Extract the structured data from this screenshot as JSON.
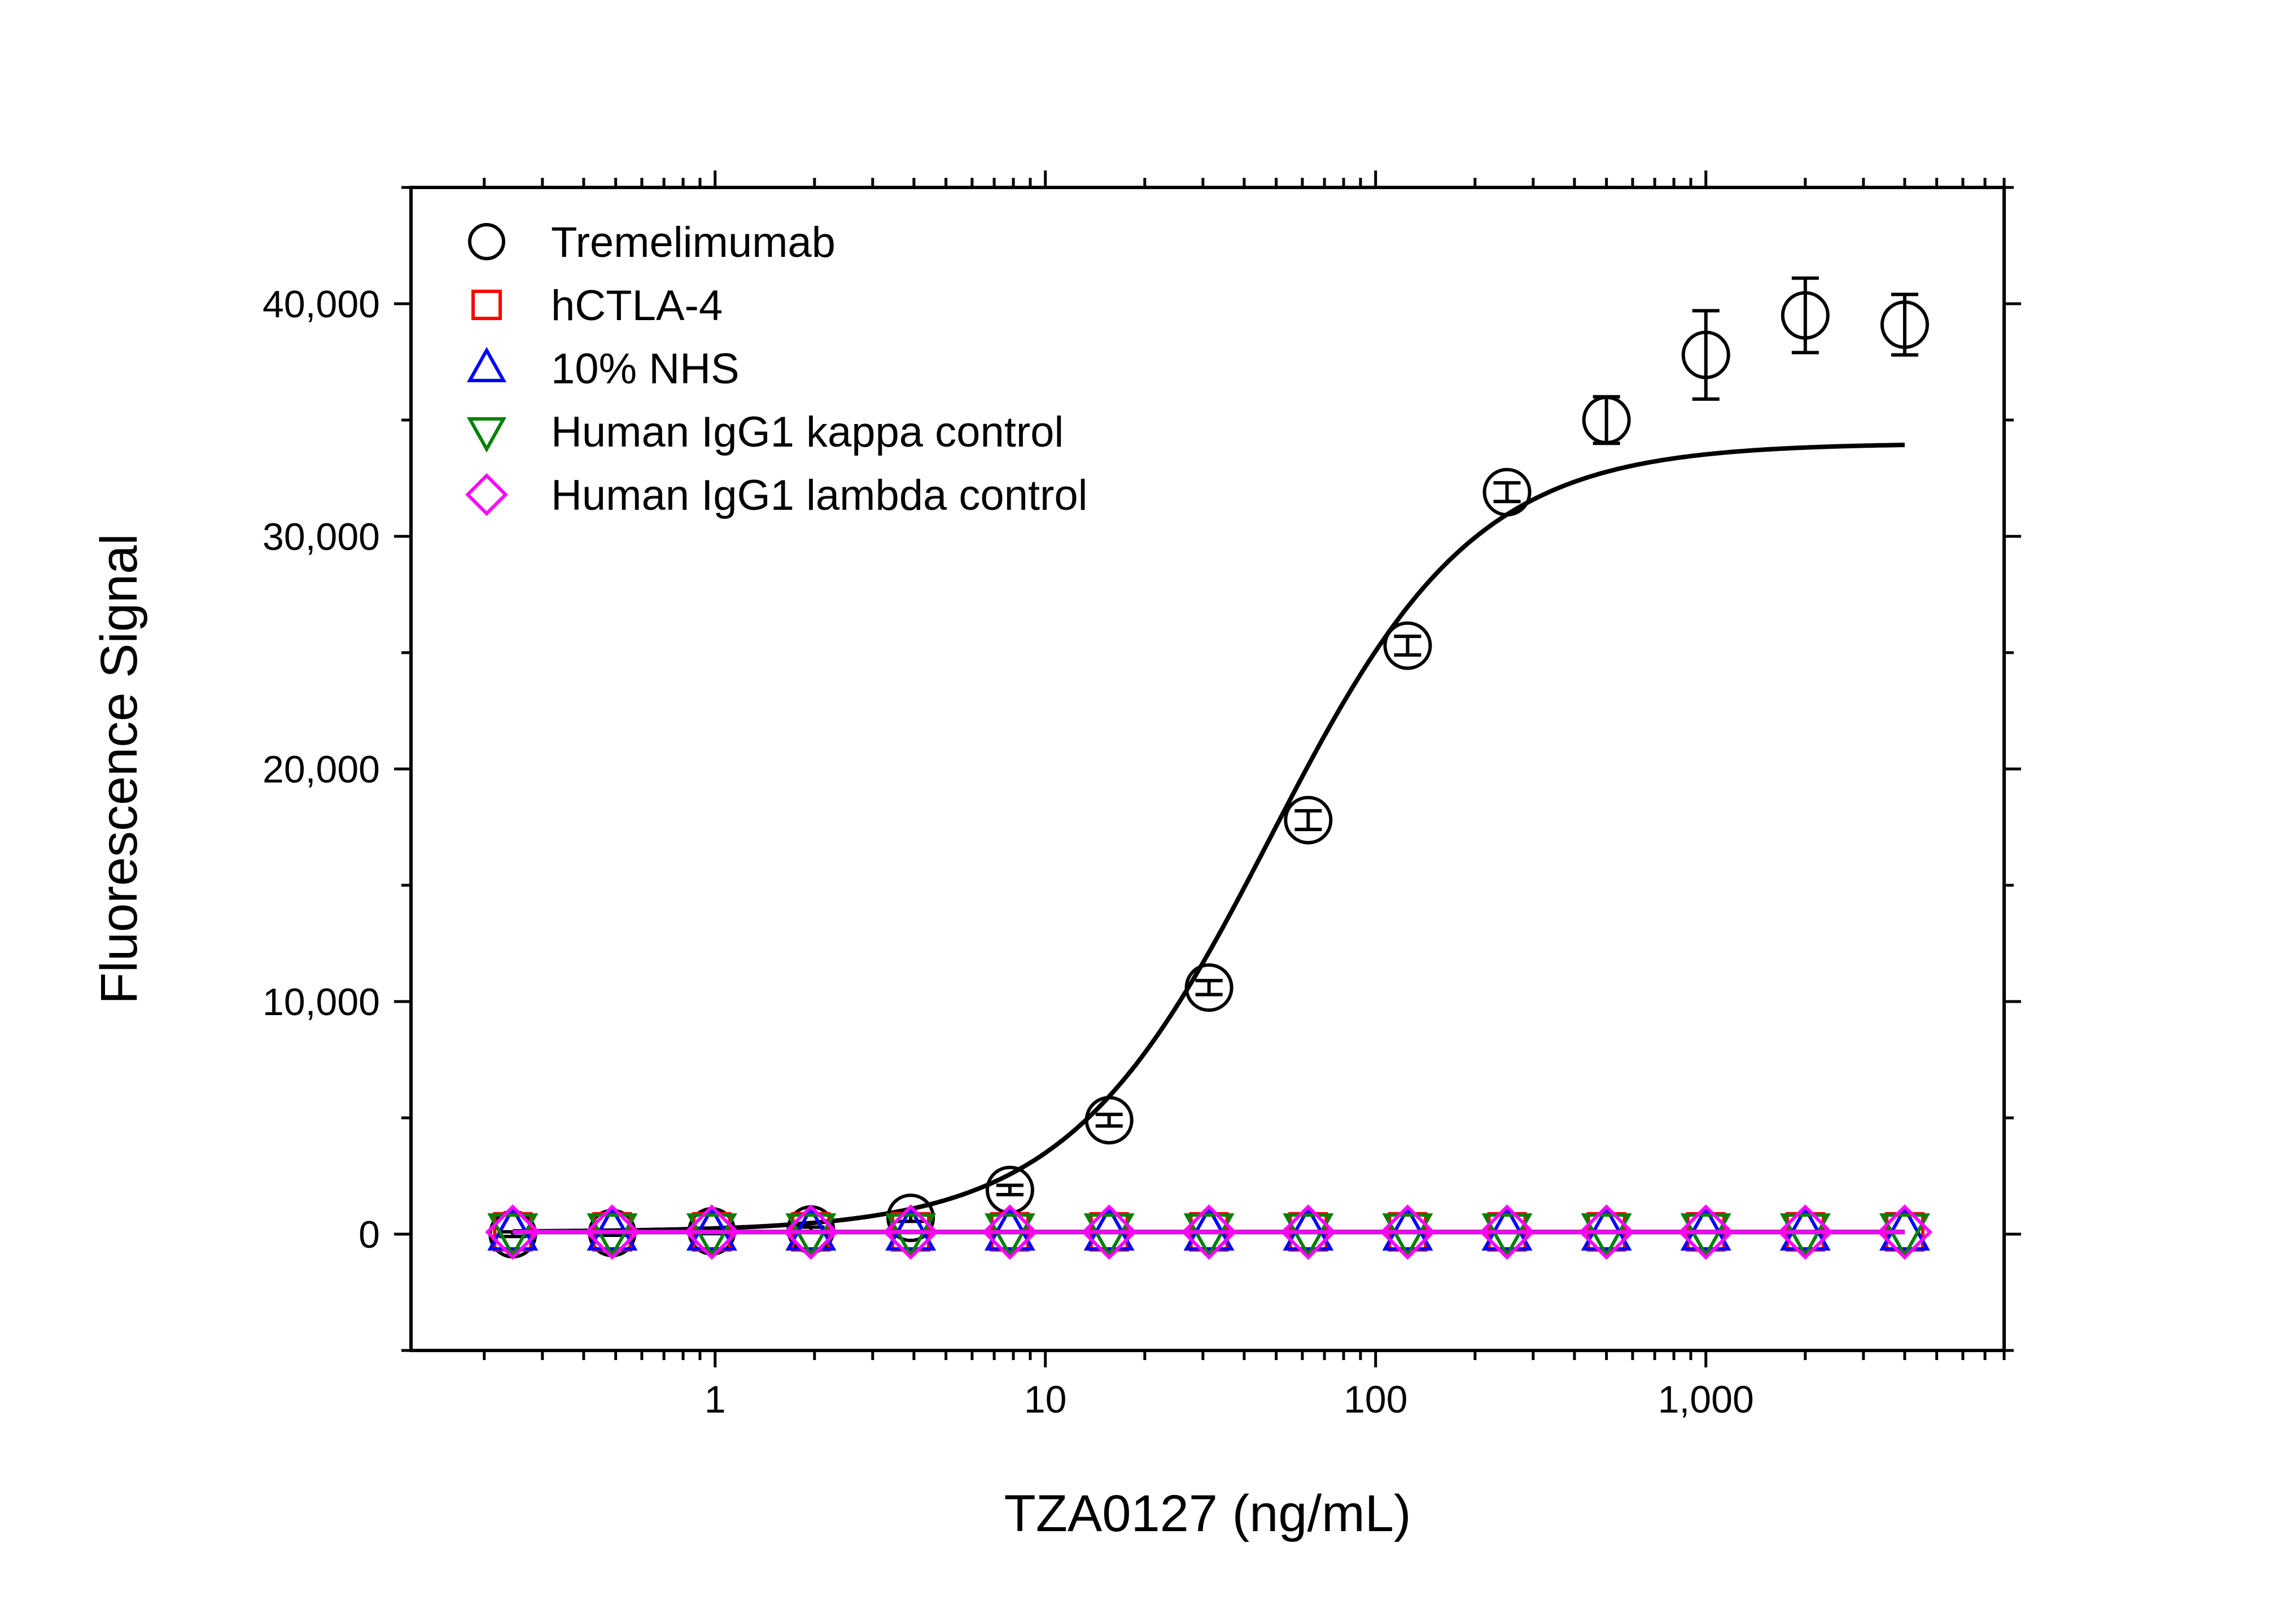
{
  "chart_data": {
    "type": "scatter",
    "xlabel": "TZA0127 (ng/mL)",
    "ylabel": "Fluorescence Signal",
    "xscale": "log",
    "xlim": [
      0.12,
      8000
    ],
    "ylim": [
      -5000,
      45000
    ],
    "x_ticks": [
      {
        "value": 1,
        "label": "1"
      },
      {
        "value": 10,
        "label": "10"
      },
      {
        "value": 100,
        "label": "100"
      },
      {
        "value": 1000,
        "label": "1,000"
      }
    ],
    "y_ticks": [
      {
        "value": 0,
        "label": "0"
      },
      {
        "value": 10000,
        "label": "10,000"
      },
      {
        "value": 20000,
        "label": "20,000"
      },
      {
        "value": 30000,
        "label": "30,000"
      },
      {
        "value": 40000,
        "label": "40,000"
      }
    ],
    "grid": false,
    "legend_position": "top-left",
    "x": [
      0.244,
      0.488,
      0.977,
      1.95,
      3.91,
      7.81,
      15.6,
      31.3,
      62.5,
      125,
      250,
      500,
      1000,
      2000,
      4000
    ],
    "series": [
      {
        "name": "Tremelimumab",
        "marker": "circle",
        "color": "#000000",
        "values": [
          0,
          50,
          120,
          200,
          700,
          1900,
          4900,
          10600,
          17800,
          25300,
          31900,
          35000,
          37800,
          39500,
          39100
        ],
        "errors": [
          100,
          100,
          100,
          100,
          150,
          200,
          250,
          300,
          400,
          400,
          400,
          1000,
          1900,
          1600,
          1300
        ],
        "fit": {
          "type": "4PL",
          "bottom": 100,
          "top": 34000,
          "ec50": 48,
          "hill": 1.4,
          "color": "#000000"
        }
      },
      {
        "name": "hCTLA-4",
        "marker": "square",
        "color": "#ff0000",
        "values": [
          100,
          100,
          100,
          100,
          100,
          100,
          100,
          100,
          100,
          100,
          100,
          100,
          100,
          100,
          100
        ]
      },
      {
        "name": "10% NHS",
        "marker": "triangle-up",
        "color": "#0000ff",
        "values": [
          80,
          80,
          80,
          80,
          80,
          80,
          80,
          80,
          80,
          80,
          80,
          80,
          80,
          80,
          80
        ]
      },
      {
        "name": "Human IgG1 kappa control",
        "marker": "triangle-down",
        "color": "#008000",
        "values": [
          110,
          110,
          110,
          110,
          110,
          110,
          110,
          110,
          110,
          110,
          110,
          110,
          110,
          110,
          110
        ]
      },
      {
        "name": "Human IgG1 lambda control",
        "marker": "diamond",
        "color": "#ff00ff",
        "values": [
          90,
          90,
          90,
          90,
          90,
          90,
          90,
          90,
          90,
          90,
          90,
          90,
          90,
          90,
          90
        ]
      }
    ]
  }
}
